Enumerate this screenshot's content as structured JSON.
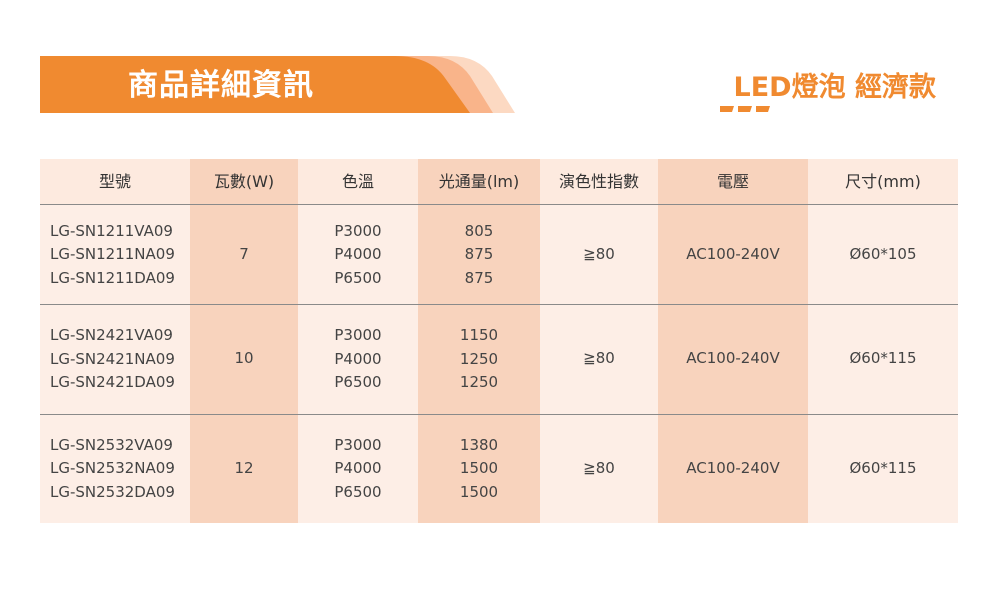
{
  "banner": {
    "title": "商品詳細資訊"
  },
  "product_heading": "LED燈泡 經濟款",
  "colors": {
    "accent": "#f08a30",
    "header_row_bg": "#fdeadf",
    "highlight_col_bg": "#f8d3bd",
    "light_col_bg": "#fdeee6"
  },
  "table": {
    "headers": [
      "型號",
      "瓦數(W)",
      "色溫",
      "光通量(lm)",
      "演色性指數",
      "電壓",
      "尺寸(mm)"
    ],
    "rows": [
      {
        "models": [
          "LG-SN1211VA09",
          "LG-SN1211NA09",
          "LG-SN1211DA09"
        ],
        "watt": "7",
        "color_temps": [
          "P3000",
          "P4000",
          "P6500"
        ],
        "lumens": [
          "805",
          "875",
          "875"
        ],
        "cri": "≧80",
        "voltage": "AC100-240V",
        "size": "Ø60*105"
      },
      {
        "models": [
          "LG-SN2421VA09",
          "LG-SN2421NA09",
          "LG-SN2421DA09"
        ],
        "watt": "10",
        "color_temps": [
          "P3000",
          "P4000",
          "P6500"
        ],
        "lumens": [
          "1150",
          "1250",
          "1250"
        ],
        "cri": "≧80",
        "voltage": "AC100-240V",
        "size": "Ø60*115"
      },
      {
        "models": [
          "LG-SN2532VA09",
          "LG-SN2532NA09",
          "LG-SN2532DA09"
        ],
        "watt": "12",
        "color_temps": [
          "P3000",
          "P4000",
          "P6500"
        ],
        "lumens": [
          "1380",
          "1500",
          "1500"
        ],
        "cri": "≧80",
        "voltage": "AC100-240V",
        "size": "Ø60*115"
      }
    ]
  }
}
